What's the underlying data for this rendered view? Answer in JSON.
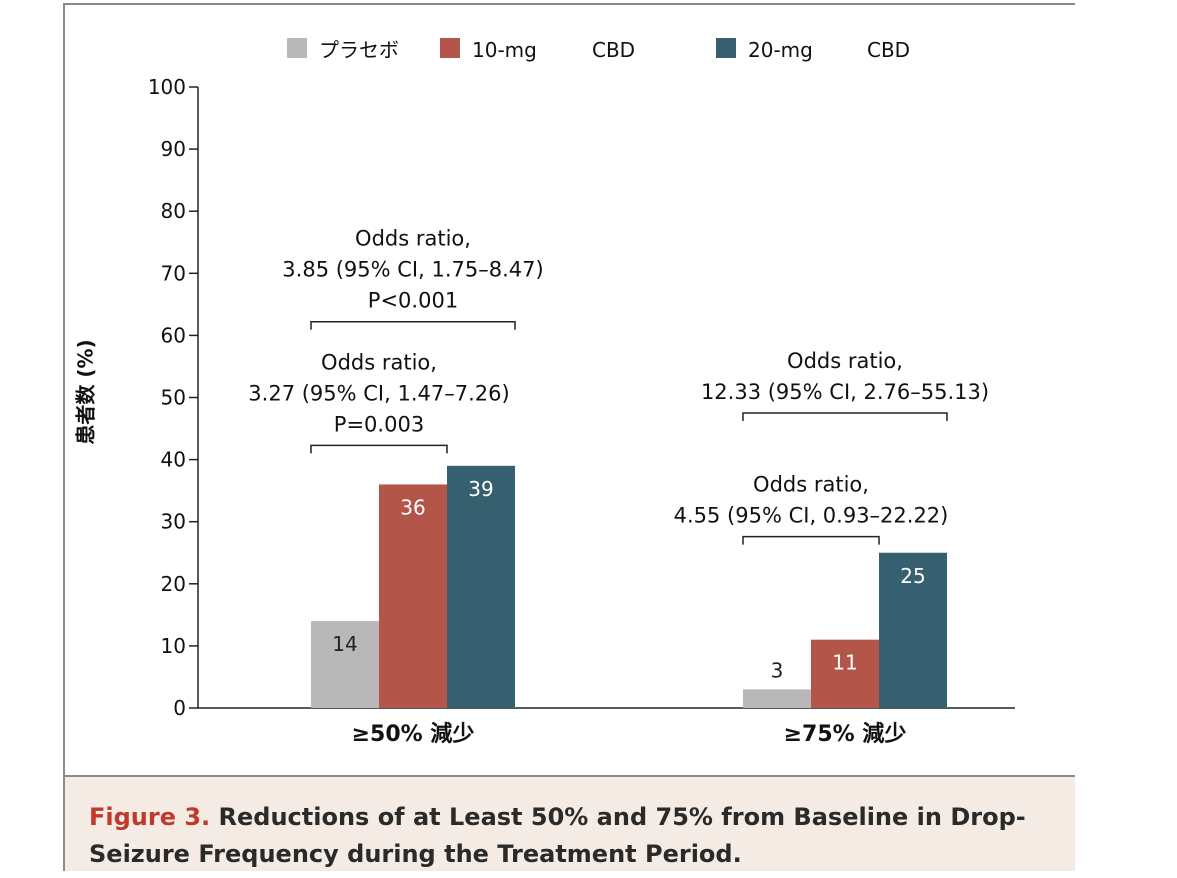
{
  "chart_data": {
    "type": "bar",
    "categories": [
      "≥50% 減少",
      "≥75% 減少"
    ],
    "series": [
      {
        "name": "プラセボ",
        "color": "#b8b8b8",
        "values": [
          14,
          3
        ]
      },
      {
        "name": "10-mg CBD",
        "color": "#b35549",
        "values": [
          36,
          11
        ]
      },
      {
        "name": "20-mg CBD",
        "color": "#365f6f",
        "values": [
          39,
          25
        ]
      }
    ],
    "legend": [
      "プラセボ",
      "10-mg",
      "CBD",
      "20-mg",
      "CBD"
    ],
    "ylabel": "患者数 (%)",
    "ylim": [
      0,
      100
    ],
    "yticks": [
      0,
      10,
      20,
      30,
      40,
      50,
      60,
      70,
      80,
      90,
      100
    ],
    "grid": false,
    "legend_position": "top",
    "annotations": [
      {
        "group": 0,
        "from_series": 0,
        "to_series": 2,
        "lines": [
          "Odds ratio,",
          "3.85 (95% CI, 1.75–8.47)",
          "P<0.001"
        ]
      },
      {
        "group": 0,
        "from_series": 0,
        "to_series": 1,
        "lines": [
          "Odds ratio,",
          "3.27 (95% CI, 1.47–7.26)",
          "P=0.003"
        ]
      },
      {
        "group": 1,
        "from_series": 0,
        "to_series": 2,
        "lines": [
          "Odds ratio,",
          "12.33 (95% CI, 2.76–55.13)"
        ]
      },
      {
        "group": 1,
        "from_series": 0,
        "to_series": 1,
        "lines": [
          "Odds ratio,",
          "4.55 (95% CI, 0.93–22.22)"
        ]
      }
    ]
  },
  "caption": {
    "label": "Figure 3.",
    "text": "Reductions of at Least 50% and 75% from Baseline in Drop-Seizure Frequency during the Treatment Period."
  }
}
